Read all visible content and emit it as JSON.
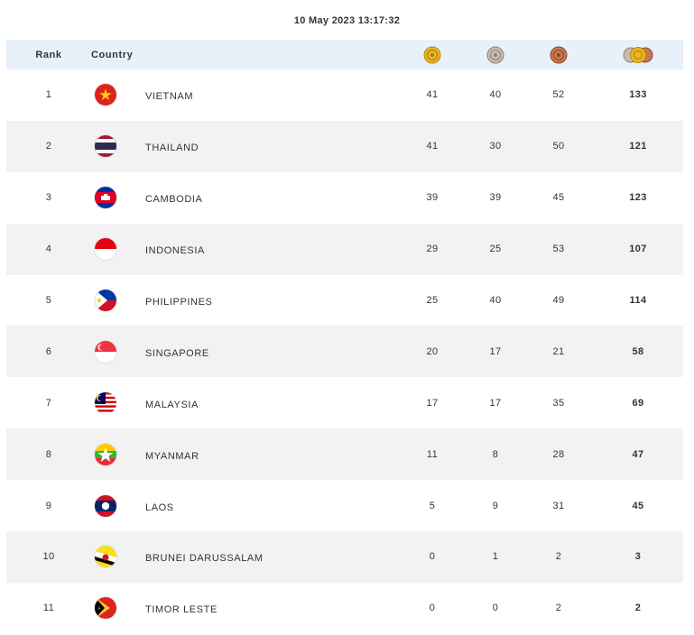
{
  "timestamp": "10 May 2023  13:17:32",
  "headers": {
    "rank": "Rank",
    "country": "Country",
    "gold_icon": "gold-medal-icon",
    "silver_icon": "silver-medal-icon",
    "bronze_icon": "bronze-medal-icon",
    "total_icon": "total-medals-icon"
  },
  "colors": {
    "header_bg": "#e8f0fa",
    "alt_row_bg": "#f2f2f2",
    "gold": "#e8b820",
    "silver": "#b8aca4",
    "bronze": "#c87850"
  },
  "rows": [
    {
      "rank": "1",
      "country": "VIETNAM",
      "flag": "vietnam-flag-icon",
      "gold": "41",
      "silver": "40",
      "bronze": "52",
      "total": "133"
    },
    {
      "rank": "2",
      "country": "THAILAND",
      "flag": "thailand-flag-icon",
      "gold": "41",
      "silver": "30",
      "bronze": "50",
      "total": "121"
    },
    {
      "rank": "3",
      "country": "CAMBODIA",
      "flag": "cambodia-flag-icon",
      "gold": "39",
      "silver": "39",
      "bronze": "45",
      "total": "123"
    },
    {
      "rank": "4",
      "country": "INDONESIA",
      "flag": "indonesia-flag-icon",
      "gold": "29",
      "silver": "25",
      "bronze": "53",
      "total": "107"
    },
    {
      "rank": "5",
      "country": "PHILIPPINES",
      "flag": "philippines-flag-icon",
      "gold": "25",
      "silver": "40",
      "bronze": "49",
      "total": "114"
    },
    {
      "rank": "6",
      "country": "SINGAPORE",
      "flag": "singapore-flag-icon",
      "gold": "20",
      "silver": "17",
      "bronze": "21",
      "total": "58"
    },
    {
      "rank": "7",
      "country": "MALAYSIA",
      "flag": "malaysia-flag-icon",
      "gold": "17",
      "silver": "17",
      "bronze": "35",
      "total": "69"
    },
    {
      "rank": "8",
      "country": "MYANMAR",
      "flag": "myanmar-flag-icon",
      "gold": "11",
      "silver": "8",
      "bronze": "28",
      "total": "47"
    },
    {
      "rank": "9",
      "country": "LAOS",
      "flag": "laos-flag-icon",
      "gold": "5",
      "silver": "9",
      "bronze": "31",
      "total": "45"
    },
    {
      "rank": "10",
      "country": "BRUNEI DARUSSALAM",
      "flag": "brunei-flag-icon",
      "gold": "0",
      "silver": "1",
      "bronze": "2",
      "total": "3"
    },
    {
      "rank": "11",
      "country": "TIMOR LESTE",
      "flag": "timor-leste-flag-icon",
      "gold": "0",
      "silver": "0",
      "bronze": "2",
      "total": "2"
    }
  ]
}
